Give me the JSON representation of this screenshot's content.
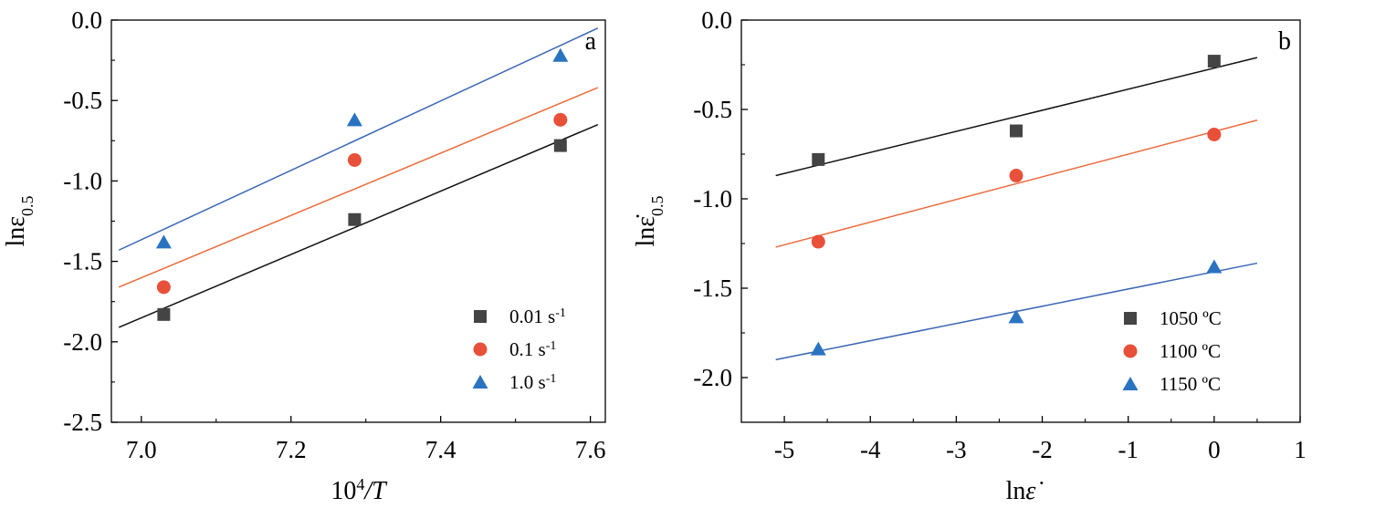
{
  "colors": {
    "black": "#444444",
    "red": "#e8503a",
    "blue": "#2a73c0",
    "fit_black": "#111111",
    "fit_red": "#ec6a3c",
    "fit_blue": "#3a66b4"
  },
  "chart_data": [
    {
      "type": "scatter",
      "panel_label": "a",
      "xlabel_base": "10",
      "xlabel_sup": "4",
      "xlabel_tail": "/T",
      "ylabel_main": "lnε",
      "ylabel_sub": "0.5",
      "xlim": [
        6.96,
        7.62
      ],
      "ylim": [
        -2.5,
        0.0
      ],
      "xticks": [
        7.0,
        7.2,
        7.4,
        7.6
      ],
      "xtick_labels": [
        "7.0",
        "7.2",
        "7.4",
        "7.6"
      ],
      "yticks": [
        0.0,
        -0.5,
        -1.0,
        -1.5,
        -2.0,
        -2.5
      ],
      "ytick_labels": [
        "0.0",
        "-0.5",
        "-1.0",
        "-1.5",
        "-2.0",
        "-2.5"
      ],
      "legend_position": "bottom-right",
      "series": [
        {
          "name": "0.01 s",
          "name_sup": "-1",
          "marker": "square",
          "color": "black",
          "x": [
            7.03,
            7.285,
            7.56
          ],
          "y": [
            -1.83,
            -1.24,
            -0.78
          ],
          "fit": {
            "x": [
              6.97,
              7.61
            ],
            "y": [
              -1.91,
              -0.65
            ]
          }
        },
        {
          "name": "0.1 s",
          "name_sup": "-1",
          "marker": "circle",
          "color": "red",
          "x": [
            7.03,
            7.285,
            7.56
          ],
          "y": [
            -1.66,
            -0.87,
            -0.62
          ],
          "fit": {
            "x": [
              6.97,
              7.61
            ],
            "y": [
              -1.66,
              -0.42
            ]
          }
        },
        {
          "name": "1.0 s",
          "name_sup": "-1",
          "marker": "triangle",
          "color": "blue",
          "x": [
            7.03,
            7.285,
            7.56
          ],
          "y": [
            -1.38,
            -0.62,
            -0.22
          ],
          "fit": {
            "x": [
              6.97,
              7.61
            ],
            "y": [
              -1.43,
              -0.05
            ]
          }
        }
      ]
    },
    {
      "type": "scatter",
      "panel_label": "b",
      "xlabel_main": "ln",
      "xlabel_sym": "ε̇",
      "ylabel_main": "lnε̇",
      "ylabel_sub": "0.5",
      "xlim": [
        -5.5,
        1.0
      ],
      "ylim": [
        -2.25,
        0.0
      ],
      "xticks": [
        -5,
        -4,
        -3,
        -2,
        -1,
        0,
        1
      ],
      "xtick_labels": [
        "-5",
        "-4",
        "-3",
        "-2",
        "-1",
        "0",
        "1"
      ],
      "yticks": [
        0.0,
        -0.5,
        -1.0,
        -1.5,
        -2.0
      ],
      "ytick_labels": [
        "0.0",
        "-0.5",
        "-1.0",
        "-1.5",
        "-2.0"
      ],
      "legend_position": "bottom-right",
      "series": [
        {
          "name": "1050 ºC",
          "marker": "square",
          "color": "black",
          "x": [
            -4.605,
            -2.303,
            0.0
          ],
          "y": [
            -0.78,
            -0.62,
            -0.23
          ],
          "fit": {
            "x": [
              -5.1,
              0.5
            ],
            "y": [
              -0.87,
              -0.21
            ]
          }
        },
        {
          "name": "1100 ºC",
          "marker": "circle",
          "color": "red",
          "x": [
            -4.605,
            -2.303,
            0.0
          ],
          "y": [
            -1.24,
            -0.87,
            -0.64
          ],
          "fit": {
            "x": [
              -5.1,
              0.5
            ],
            "y": [
              -1.27,
              -0.56
            ]
          }
        },
        {
          "name": "1150 ºC",
          "marker": "triangle",
          "color": "blue",
          "x": [
            -4.605,
            -2.303,
            0.0
          ],
          "y": [
            -1.84,
            -1.66,
            -1.38
          ],
          "fit": {
            "x": [
              -5.1,
              0.5
            ],
            "y": [
              -1.9,
              -1.36
            ]
          }
        }
      ]
    }
  ]
}
